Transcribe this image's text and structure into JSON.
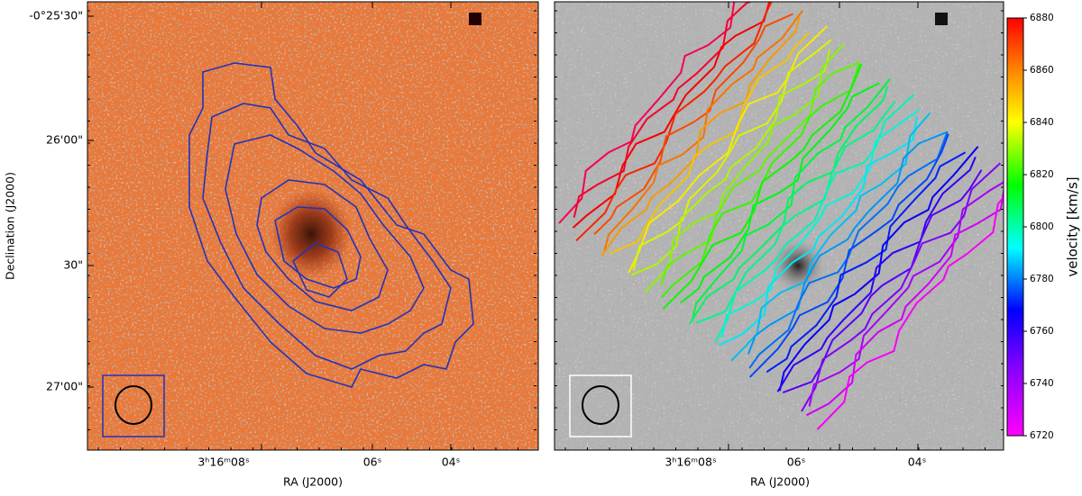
{
  "chart_data": [
    {
      "type": "image",
      "xlabel": "RA (J2000)",
      "ylabel": "Declination (J2000)",
      "xticklabels": [
        "3ʰ16ᵐ08ˢ",
        "06ˢ",
        "04ˢ"
      ],
      "yticklabels": [
        "-0°25'30\"",
        "26'00\"",
        "30\"",
        "27'00\""
      ]
    },
    {
      "type": "image",
      "xlabel": "RA (J2000)",
      "xticklabels": [
        "3ʰ16ᵐ08ˢ",
        "06ˢ",
        "04ˢ"
      ],
      "colorbar": {
        "label": "velocity [km/s]",
        "lim": [
          6720,
          6880
        ],
        "ticks": [
          6720,
          6740,
          6760,
          6780,
          6800,
          6820,
          6840,
          6860,
          6880
        ]
      }
    }
  ]
}
